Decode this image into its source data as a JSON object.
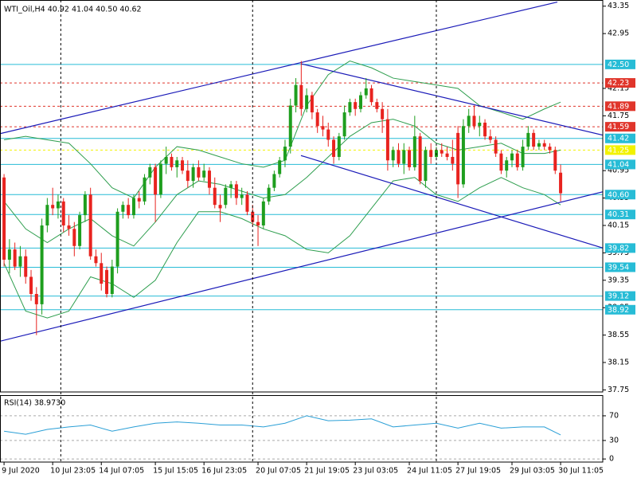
{
  "chart_data": [
    {
      "type": "candlestick",
      "title": "WTI_Oil,H4  40.92 41.04 40.50 40.62",
      "up_color": "#1e9e1e",
      "down_color": "#e8231f",
      "xlim": [
        -0.75,
        110.8
      ],
      "ylim": [
        37.72,
        43.44
      ],
      "yticks": [
        43.35,
        42.95,
        42.15,
        41.75,
        40.95,
        40.55,
        40.15,
        39.75,
        39.35,
        38.95,
        38.55,
        38.15,
        37.75
      ],
      "xticks": [
        {
          "value": 0,
          "label": "9 Jul 2020"
        },
        {
          "value": 9,
          "label": "10 Jul 23:05"
        },
        {
          "value": 18,
          "label": "14 Jul 07:05"
        },
        {
          "value": 28,
          "label": "15 Jul 15:05"
        },
        {
          "value": 37,
          "label": "16 Jul 23:05"
        },
        {
          "value": 47,
          "label": "20 Jul 07:05"
        },
        {
          "value": 56,
          "label": "21 Jul 19:05"
        },
        {
          "value": 65,
          "label": "23 Jul 03:05"
        },
        {
          "value": 75,
          "label": "24 Jul 11:05"
        },
        {
          "value": 84,
          "label": "27 Jul 19:05"
        },
        {
          "value": 94,
          "label": "29 Jul 03:05"
        },
        {
          "value": 103,
          "label": "30 Jul 11:05"
        }
      ],
      "vlines": [
        10.5,
        46,
        80
      ],
      "open": [
        40.85,
        39.65,
        39.8,
        39.55,
        39.7,
        39.4,
        39.15,
        39.0,
        40.15,
        40.45,
        40.4,
        40.5,
        40.15,
        40.1,
        39.85,
        40.3,
        40.6,
        39.7,
        39.6,
        39.5,
        39.15,
        39.55,
        40.35,
        40.45,
        40.3,
        40.55,
        40.5,
        40.85,
        41.0,
        40.6,
        41.05,
        41.15,
        41.0,
        41.1,
        40.95,
        40.8,
        41.0,
        40.85,
        40.95,
        40.7,
        40.45,
        40.45,
        40.7,
        40.75,
        40.55,
        40.6,
        40.35,
        40.2,
        40.15,
        40.5,
        40.7,
        40.9,
        41.1,
        41.3,
        41.9,
        42.2,
        41.85,
        42.05,
        41.8,
        41.6,
        41.55,
        41.4,
        41.15,
        41.45,
        41.8,
        41.95,
        41.85,
        42.05,
        42.15,
        41.95,
        41.85,
        41.7,
        41.1,
        41.25,
        41.05,
        41.25,
        41.0,
        41.45,
        40.8,
        41.25,
        41.15,
        41.25,
        41.2,
        41.15,
        41.5,
        40.75,
        41.6,
        41.75,
        41.6,
        41.65,
        41.45,
        41.4,
        41.2,
        40.95,
        41.1,
        41.2,
        41.0,
        41.3,
        41.5,
        41.3,
        41.35,
        41.3,
        41.25,
        40.92
      ],
      "high": [
        40.9,
        39.95,
        39.9,
        39.85,
        39.8,
        39.5,
        39.25,
        40.25,
        40.55,
        40.7,
        40.6,
        40.55,
        40.3,
        40.2,
        40.35,
        40.65,
        40.7,
        39.8,
        39.75,
        39.55,
        39.65,
        40.4,
        40.5,
        40.55,
        40.6,
        40.65,
        40.9,
        41.05,
        41.05,
        41.1,
        41.3,
        41.2,
        41.15,
        41.15,
        41.1,
        41.05,
        41.1,
        41.05,
        41.0,
        40.85,
        40.6,
        40.75,
        40.8,
        40.8,
        40.7,
        40.65,
        40.45,
        40.3,
        40.55,
        40.75,
        40.95,
        41.15,
        41.4,
        42.0,
        42.3,
        42.55,
        42.15,
        42.1,
        41.85,
        41.75,
        41.65,
        41.45,
        41.5,
        41.9,
        42.0,
        42.0,
        42.1,
        42.3,
        42.2,
        42.0,
        41.95,
        41.85,
        41.3,
        41.35,
        41.35,
        41.3,
        41.75,
        41.5,
        41.3,
        41.35,
        41.3,
        41.35,
        41.3,
        41.4,
        41.6,
        41.7,
        41.85,
        41.9,
        41.75,
        41.7,
        41.55,
        41.45,
        41.25,
        41.15,
        41.25,
        41.25,
        41.4,
        41.6,
        41.55,
        41.4,
        41.4,
        41.35,
        41.3,
        41.04
      ],
      "low": [
        39.55,
        39.45,
        39.5,
        39.4,
        39.3,
        39.05,
        38.55,
        38.85,
        40.05,
        40.3,
        40.25,
        40.05,
        40.0,
        39.7,
        39.8,
        40.2,
        39.65,
        39.55,
        39.2,
        39.1,
        39.1,
        39.45,
        40.25,
        40.25,
        40.25,
        40.4,
        40.45,
        40.75,
        40.2,
        40.55,
        40.9,
        40.95,
        40.85,
        40.9,
        40.7,
        40.7,
        40.8,
        40.8,
        40.6,
        40.4,
        40.2,
        40.4,
        40.55,
        40.45,
        40.45,
        40.3,
        40.15,
        39.85,
        40.1,
        40.45,
        40.65,
        40.85,
        41.0,
        41.2,
        41.8,
        41.75,
        41.8,
        41.7,
        41.5,
        41.45,
        41.3,
        41.05,
        41.1,
        41.4,
        41.75,
        41.75,
        41.8,
        42.0,
        41.9,
        41.8,
        41.5,
        40.95,
        41.0,
        41.0,
        40.9,
        40.95,
        40.95,
        40.75,
        40.7,
        41.05,
        41.1,
        41.15,
        41.1,
        40.95,
        40.55,
        40.7,
        41.5,
        41.55,
        41.45,
        41.4,
        41.35,
        41.15,
        40.9,
        40.85,
        41.0,
        40.95,
        40.95,
        41.25,
        41.25,
        41.25,
        41.25,
        41.2,
        40.9,
        40.5
      ],
      "close": [
        39.65,
        39.8,
        39.55,
        39.7,
        39.4,
        39.15,
        39.0,
        40.15,
        40.45,
        40.4,
        40.5,
        40.15,
        40.1,
        39.85,
        40.3,
        40.6,
        39.7,
        39.6,
        39.3,
        39.15,
        39.55,
        40.35,
        40.45,
        40.3,
        40.55,
        40.5,
        40.85,
        41.0,
        40.6,
        41.05,
        41.15,
        41.0,
        41.1,
        40.95,
        40.8,
        41.0,
        40.85,
        40.95,
        40.7,
        40.45,
        40.4,
        40.7,
        40.75,
        40.55,
        40.6,
        40.35,
        40.2,
        40.15,
        40.5,
        40.7,
        40.9,
        41.1,
        41.3,
        41.9,
        42.2,
        41.85,
        42.05,
        41.8,
        41.6,
        41.55,
        41.4,
        41.15,
        41.45,
        41.8,
        41.95,
        41.85,
        42.05,
        42.15,
        41.95,
        41.85,
        41.7,
        41.1,
        41.25,
        41.05,
        41.25,
        41.0,
        41.45,
        40.8,
        41.25,
        41.15,
        41.25,
        41.2,
        41.15,
        41.05,
        40.75,
        41.6,
        41.75,
        41.6,
        41.65,
        41.45,
        41.4,
        41.2,
        40.95,
        41.1,
        41.2,
        41.0,
        41.3,
        41.5,
        41.3,
        41.35,
        41.3,
        41.25,
        40.95,
        40.62
      ],
      "bands": {
        "color": "#2e9e4e",
        "x": [
          0,
          4,
          8,
          12,
          16,
          20,
          24,
          28,
          32,
          36,
          40,
          44,
          48,
          52,
          56,
          60,
          64,
          68,
          72,
          76,
          80,
          84,
          88,
          92,
          96,
          100,
          103
        ],
        "upper": [
          41.4,
          41.45,
          41.4,
          41.35,
          41.05,
          40.7,
          40.55,
          41.0,
          41.3,
          41.25,
          41.15,
          41.05,
          41.0,
          41.1,
          41.9,
          42.35,
          42.55,
          42.45,
          42.3,
          42.25,
          42.2,
          42.15,
          41.9,
          41.8,
          41.7,
          41.85,
          41.95
        ],
        "middle": [
          40.5,
          40.1,
          39.9,
          40.1,
          40.25,
          40.0,
          39.85,
          40.2,
          40.6,
          40.8,
          40.75,
          40.65,
          40.55,
          40.6,
          40.85,
          41.15,
          41.45,
          41.65,
          41.7,
          41.6,
          41.35,
          41.25,
          41.3,
          41.35,
          41.2,
          41.2,
          41.25
        ],
        "lower": [
          39.6,
          38.9,
          38.8,
          38.9,
          39.4,
          39.3,
          39.1,
          39.35,
          39.9,
          40.35,
          40.35,
          40.25,
          40.1,
          40.0,
          39.8,
          39.75,
          40.0,
          40.4,
          40.8,
          40.85,
          40.6,
          40.5,
          40.7,
          40.85,
          40.7,
          40.6,
          40.45
        ]
      },
      "trendline_color": "#1a1ab8",
      "trendlines": [
        {
          "x": [
            -0.75,
            111.25
          ],
          "y": [
            38.46,
            40.65
          ]
        },
        {
          "x": [
            -0.75,
            102.4
          ],
          "y": [
            41.49,
            43.41
          ]
        },
        {
          "x": [
            54.95,
            111.25
          ],
          "y": [
            42.51,
            41.46
          ]
        },
        {
          "x": [
            54.95,
            111.25
          ],
          "y": [
            41.17,
            39.81
          ]
        }
      ],
      "levels": [
        {
          "value": 42.5,
          "label": "42.50",
          "color": "#27bcd6",
          "style": "solid"
        },
        {
          "value": 42.23,
          "label": "42.23",
          "color": "#e0352b",
          "style": "dashed"
        },
        {
          "value": 41.89,
          "label": "41.89",
          "color": "#e0352b",
          "style": "dashed"
        },
        {
          "value": 41.59,
          "label": "41.59",
          "color": "#e0352b",
          "style": "dashed"
        },
        {
          "value": 41.42,
          "label": "41.42",
          "color": "#27bcd6",
          "style": "solid"
        },
        {
          "value": 41.25,
          "label": "41.25",
          "color": "#f2f200",
          "style": "dashed"
        },
        {
          "value": 41.04,
          "label": "41.04",
          "color": "#27bcd6",
          "style": "solid"
        },
        {
          "value": 40.6,
          "label": "40.60",
          "color": "#27bcd6",
          "style": "solid"
        },
        {
          "value": 40.31,
          "label": "40.31",
          "color": "#27bcd6",
          "style": "solid"
        },
        {
          "value": 39.82,
          "label": "39.82",
          "color": "#27bcd6",
          "style": "solid"
        },
        {
          "value": 39.54,
          "label": "39.54",
          "color": "#27bcd6",
          "style": "solid"
        },
        {
          "value": 39.12,
          "label": "39.12",
          "color": "#27bcd6",
          "style": "solid"
        },
        {
          "value": 38.92,
          "label": "38.92",
          "color": "#27bcd6",
          "style": "solid"
        }
      ]
    },
    {
      "type": "line",
      "title": "RSI(14) 38.9730",
      "color": "#2a9fd6",
      "ylim": [
        -5,
        103.5
      ],
      "yticks": [
        0,
        30,
        70
      ],
      "x": [
        0,
        4,
        8,
        12,
        16,
        20,
        24,
        28,
        32,
        36,
        40,
        44,
        48,
        52,
        56,
        60,
        64,
        68,
        72,
        76,
        80,
        84,
        88,
        92,
        96,
        100,
        103
      ],
      "values": [
        45,
        40,
        48,
        52,
        55,
        45,
        52,
        58,
        60,
        58,
        55,
        55,
        52,
        58,
        70,
        62,
        63,
        65,
        52,
        55,
        58,
        50,
        58,
        50,
        52,
        52,
        38.973
      ]
    }
  ]
}
